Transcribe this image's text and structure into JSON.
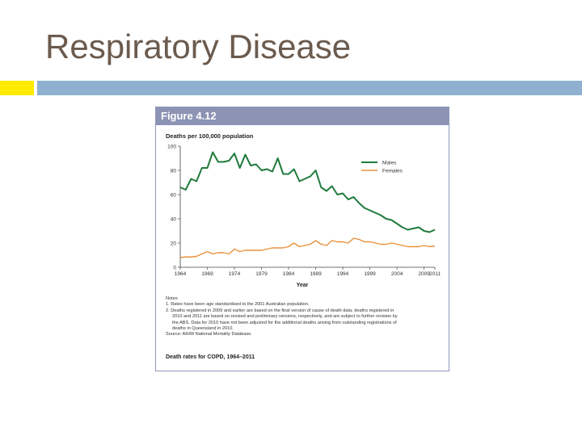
{
  "slide": {
    "title": "Respiratory Disease"
  },
  "figure": {
    "label": "Figure 4.12",
    "notes_heading": "Notes",
    "notes": [
      "1.  Rates have been age standardised to the 2001 Australian population.",
      "2.  Deaths registered in 2009 and earlier are based on the final version of cause of death data; deaths registered in",
      "2010 and 2011 are based on revised and preliminary versions, respectively, and are subject to further revision by",
      "the ABS. Data for 2010 have not been adjusted for the additional deaths arising from outstanding registrations of",
      "deaths in Queensland in 2010."
    ],
    "source": "Source: AIHW National Mortality Database.",
    "caption": "Death rates for COPD, 1964–2011"
  },
  "colors": {
    "males": "#1f7a3c",
    "females": "#e8913b",
    "header": "#8c93b5"
  },
  "chart_data": {
    "type": "line",
    "ylabel": "Deaths per 100,000 population",
    "xlabel": "Year",
    "ylim": [
      0,
      100
    ],
    "yticks": [
      0,
      20,
      40,
      60,
      80,
      100
    ],
    "xlim": [
      1964,
      2011
    ],
    "xticks": [
      "1964",
      "1969",
      "1974",
      "1979",
      "1984",
      "1989",
      "1994",
      "1999",
      "2004",
      "2009",
      "2011"
    ],
    "legend_position": "top-right",
    "x": [
      1964,
      1965,
      1966,
      1967,
      1968,
      1969,
      1970,
      1971,
      1972,
      1973,
      1974,
      1975,
      1976,
      1977,
      1978,
      1979,
      1980,
      1981,
      1982,
      1983,
      1984,
      1985,
      1986,
      1987,
      1988,
      1989,
      1990,
      1991,
      1992,
      1993,
      1994,
      1995,
      1996,
      1997,
      1998,
      1999,
      2000,
      2001,
      2002,
      2003,
      2004,
      2005,
      2006,
      2007,
      2008,
      2009,
      2010,
      2011
    ],
    "series": [
      {
        "name": "Males",
        "values": [
          66,
          64,
          73,
          71,
          82,
          82,
          95,
          87,
          87,
          88,
          94,
          82,
          93,
          84,
          85,
          80,
          81,
          79,
          90,
          77,
          77,
          81,
          71,
          73,
          75,
          80,
          66,
          63,
          67,
          60,
          61,
          56,
          58,
          53,
          49,
          47,
          45,
          43,
          40,
          39,
          36,
          33,
          31,
          32,
          33,
          30,
          29,
          31
        ]
      },
      {
        "name": "Females",
        "values": [
          8,
          8.5,
          8.5,
          9,
          11,
          13,
          11,
          12,
          12,
          11,
          15,
          13,
          14,
          14,
          14,
          14,
          15,
          16,
          16,
          16,
          17,
          20,
          17,
          18,
          19,
          22,
          19,
          18,
          22,
          21,
          21,
          20,
          24,
          23,
          21,
          21,
          20,
          19,
          19,
          20,
          19,
          18,
          17,
          17,
          17,
          18,
          17,
          17.5
        ]
      }
    ]
  }
}
